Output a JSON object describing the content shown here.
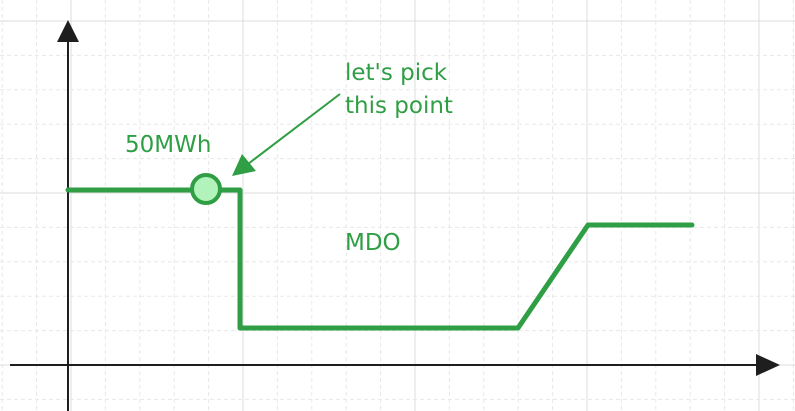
{
  "labels": {
    "value_label": "50MWh",
    "annotation": [
      "let's pick",
      "this point"
    ],
    "region": "MDO"
  }
}
